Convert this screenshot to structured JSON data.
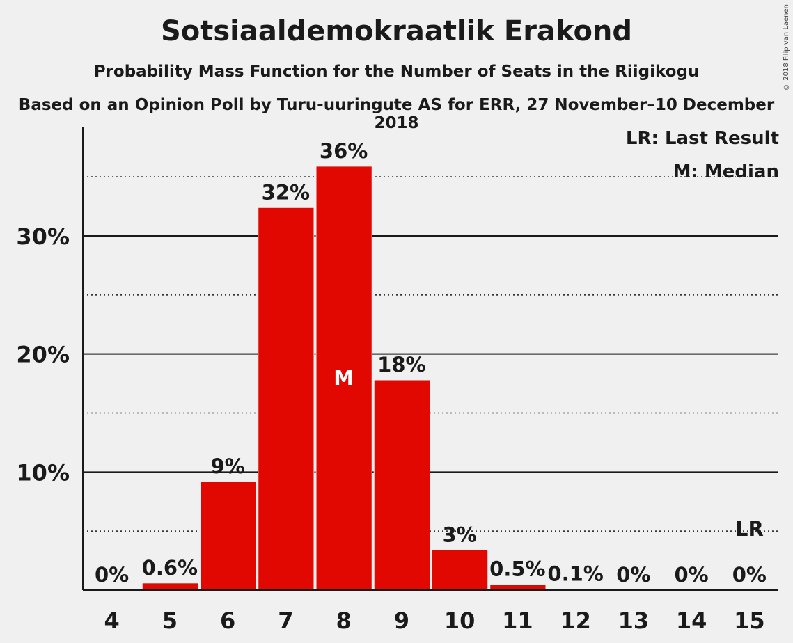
{
  "header": {
    "title": "Sotsiaaldemokraatlik Erakond",
    "subtitle": "Probability Mass Function for the Number of Seats in the Riigikogu",
    "subtitle2": "Based on an Opinion Poll by Turu-uuringute AS for ERR, 27 November–10 December 2018",
    "copyright": "© 2018 Filip van Laenen"
  },
  "legend": {
    "lr": "LR: Last Result",
    "m": "M: Median"
  },
  "colors": {
    "bar": "#e00800",
    "background": "#f0f0f0",
    "text": "#1a1a1a"
  },
  "chart_data": {
    "type": "bar",
    "categories": [
      "4",
      "5",
      "6",
      "7",
      "8",
      "9",
      "10",
      "11",
      "12",
      "13",
      "14",
      "15"
    ],
    "values": [
      0,
      0.6,
      9.2,
      32.4,
      35.9,
      17.8,
      3.4,
      0.5,
      0.1,
      0,
      0,
      0
    ],
    "labels": [
      "0%",
      "0.6%",
      "9%",
      "32%",
      "36%",
      "18%",
      "3%",
      "0.5%",
      "0.1%",
      "0%",
      "0%",
      "0%"
    ],
    "yticks": [
      10,
      20,
      30
    ],
    "ytick_labels": [
      "10%",
      "20%",
      "30%"
    ],
    "ylim": [
      0,
      39
    ],
    "median_category": "8",
    "median_marker": "M",
    "last_result_category": "15",
    "last_result_marker": "LR"
  }
}
